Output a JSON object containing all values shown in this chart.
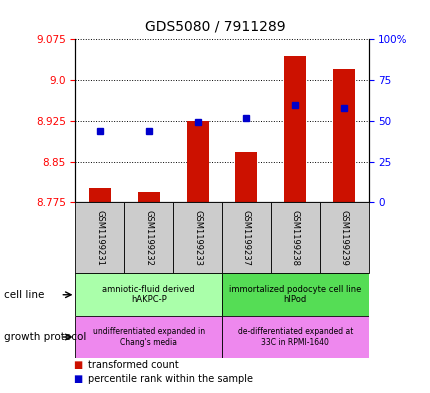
{
  "title": "GDS5080 / 7911289",
  "samples": [
    "GSM1199231",
    "GSM1199232",
    "GSM1199233",
    "GSM1199237",
    "GSM1199238",
    "GSM1199239"
  ],
  "transformed_count": [
    8.802,
    8.795,
    8.925,
    8.868,
    9.045,
    9.02
  ],
  "percentile_rank": [
    44,
    44,
    49,
    52,
    60,
    58
  ],
  "ylim_left": [
    8.775,
    9.075
  ],
  "ylim_right": [
    0,
    100
  ],
  "yticks_left": [
    8.775,
    8.85,
    8.925,
    9.0,
    9.075
  ],
  "yticks_right": [
    0,
    25,
    50,
    75,
    100
  ],
  "bar_color": "#cc1100",
  "marker_color": "#0000cc",
  "cell_line_labels": [
    "amniotic-fluid derived\nhAKPC-P",
    "immortalized podocyte cell line\nhIPod"
  ],
  "cell_line_colors": [
    "#aaffaa",
    "#55dd55"
  ],
  "growth_protocol_labels": [
    "undifferentiated expanded in\nChang's media",
    "de-differentiated expanded at\n33C in RPMI-1640"
  ],
  "growth_protocol_color": "#ee88ee",
  "legend_items": [
    "transformed count",
    "percentile rank within the sample"
  ],
  "legend_colors": [
    "#cc1100",
    "#0000cc"
  ],
  "bar_bottom": 8.775
}
